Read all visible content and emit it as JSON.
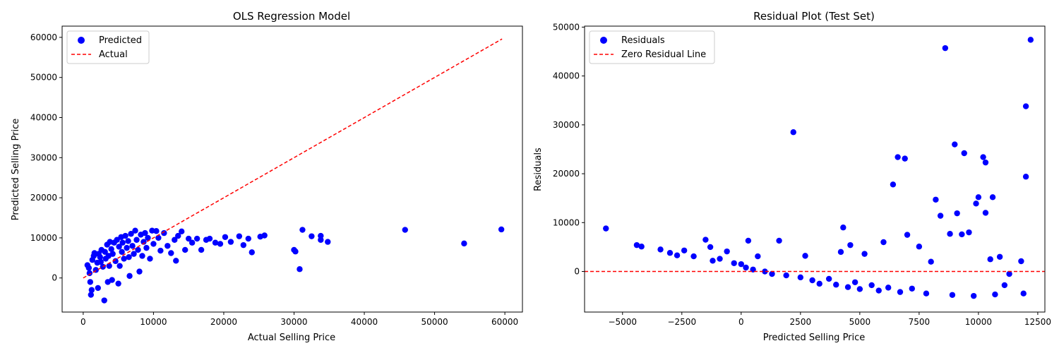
{
  "chart_data": [
    {
      "type": "scatter",
      "title": "OLS Regression Model",
      "xlabel": "Actual Selling Price",
      "ylabel": "Predicted Selling Price",
      "xlim": [
        -3000,
        62500
      ],
      "ylim": [
        -8500,
        62800
      ],
      "xticks": [
        0,
        10000,
        20000,
        30000,
        40000,
        50000,
        60000
      ],
      "yticks": [
        0,
        10000,
        20000,
        30000,
        40000,
        50000,
        60000
      ],
      "xtick_labels": [
        "0",
        "10000",
        "20000",
        "30000",
        "40000",
        "50000",
        "60000"
      ],
      "ytick_labels": [
        "0",
        "10000",
        "20000",
        "30000",
        "40000",
        "50000",
        "60000"
      ],
      "grid": false,
      "legend": "top-left",
      "series": [
        {
          "name": "Predicted",
          "kind": "scatter",
          "color": "#0000ff",
          "points": [
            [
              600,
              3200
            ],
            [
              800,
              2500
            ],
            [
              900,
              1200
            ],
            [
              1000,
              -1000
            ],
            [
              1100,
              -4200
            ],
            [
              1200,
              -3000
            ],
            [
              1300,
              4500
            ],
            [
              1500,
              5500
            ],
            [
              1600,
              6200
            ],
            [
              1800,
              2000
            ],
            [
              2000,
              3800
            ],
            [
              2100,
              -2500
            ],
            [
              2200,
              6000
            ],
            [
              2400,
              5200
            ],
            [
              2500,
              4000
            ],
            [
              2600,
              7000
            ],
            [
              2800,
              2800
            ],
            [
              3000,
              -5600
            ],
            [
              3100,
              6500
            ],
            [
              3200,
              4800
            ],
            [
              3400,
              8300
            ],
            [
              3500,
              -1000
            ],
            [
              3600,
              5500
            ],
            [
              3700,
              3000
            ],
            [
              3800,
              9000
            ],
            [
              4000,
              7200
            ],
            [
              4100,
              -500
            ],
            [
              4200,
              6000
            ],
            [
              4400,
              8800
            ],
            [
              4600,
              4200
            ],
            [
              4800,
              9500
            ],
            [
              5000,
              -1400
            ],
            [
              5100,
              7800
            ],
            [
              5200,
              3000
            ],
            [
              5400,
              10200
            ],
            [
              5500,
              6500
            ],
            [
              5600,
              8800
            ],
            [
              5800,
              4800
            ],
            [
              6000,
              10500
            ],
            [
              6200,
              7500
            ],
            [
              6400,
              9200
            ],
            [
              6500,
              5200
            ],
            [
              6600,
              500
            ],
            [
              6800,
              11000
            ],
            [
              7000,
              8000
            ],
            [
              7200,
              6000
            ],
            [
              7400,
              11800
            ],
            [
              7600,
              9500
            ],
            [
              7800,
              7000
            ],
            [
              8000,
              1600
            ],
            [
              8200,
              10800
            ],
            [
              8400,
              5500
            ],
            [
              8600,
              9000
            ],
            [
              8800,
              11200
            ],
            [
              9000,
              7500
            ],
            [
              9200,
              10000
            ],
            [
              9500,
              4800
            ],
            [
              9800,
              11800
            ],
            [
              10000,
              8500
            ],
            [
              10400,
              11700
            ],
            [
              10700,
              10000
            ],
            [
              11000,
              6800
            ],
            [
              11500,
              11200
            ],
            [
              12000,
              8000
            ],
            [
              12500,
              6200
            ],
            [
              13000,
              9500
            ],
            [
              13200,
              4300
            ],
            [
              13500,
              10500
            ],
            [
              14000,
              11600
            ],
            [
              14500,
              7000
            ],
            [
              15000,
              9800
            ],
            [
              15500,
              8800
            ],
            [
              16200,
              9800
            ],
            [
              16800,
              7000
            ],
            [
              17500,
              9500
            ],
            [
              18000,
              9800
            ],
            [
              18800,
              8800
            ],
            [
              19500,
              8500
            ],
            [
              20200,
              10200
            ],
            [
              21000,
              9000
            ],
            [
              22200,
              10400
            ],
            [
              22800,
              8200
            ],
            [
              23500,
              9800
            ],
            [
              24000,
              6400
            ],
            [
              25200,
              10300
            ],
            [
              25800,
              10600
            ],
            [
              30000,
              7000
            ],
            [
              30200,
              6600
            ],
            [
              30800,
              2200
            ],
            [
              31200,
              12000
            ],
            [
              32500,
              10400
            ],
            [
              33800,
              10500
            ],
            [
              33800,
              9500
            ],
            [
              34800,
              9000
            ],
            [
              45800,
              12000
            ],
            [
              54200,
              8600
            ],
            [
              59500,
              12100
            ]
          ]
        },
        {
          "name": "Actual",
          "kind": "line",
          "style": "dashed",
          "color": "#ff0000",
          "points": [
            [
              0,
              0
            ],
            [
              59600,
              59600
            ]
          ]
        }
      ]
    },
    {
      "type": "scatter",
      "title": "Residual Plot (Test Set)",
      "xlabel": "Predicted Selling Price",
      "ylabel": "Residuals",
      "xlim": [
        -6600,
        12800
      ],
      "ylim": [
        -8300,
        50200
      ],
      "xticks": [
        -5000,
        -2500,
        0,
        2500,
        5000,
        7500,
        10000,
        12500
      ],
      "yticks": [
        0,
        10000,
        20000,
        30000,
        40000,
        50000
      ],
      "xtick_labels": [
        "−5000",
        "−2500",
        "0",
        "2500",
        "5000",
        "7500",
        "10000",
        "12500"
      ],
      "ytick_labels": [
        "0",
        "10000",
        "20000",
        "30000",
        "40000",
        "50000"
      ],
      "grid": false,
      "legend": "top-left",
      "series": [
        {
          "name": "Residuals",
          "kind": "scatter",
          "color": "#0000ff",
          "points": [
            [
              -5700,
              8800
            ],
            [
              -4400,
              5400
            ],
            [
              -4200,
              5100
            ],
            [
              -3400,
              4500
            ],
            [
              -3000,
              3800
            ],
            [
              -2700,
              3300
            ],
            [
              -2400,
              4300
            ],
            [
              -2000,
              3100
            ],
            [
              -1500,
              6500
            ],
            [
              -1300,
              5000
            ],
            [
              -1200,
              2200
            ],
            [
              -900,
              2600
            ],
            [
              -600,
              4100
            ],
            [
              -300,
              1700
            ],
            [
              0,
              1500
            ],
            [
              200,
              800
            ],
            [
              300,
              6300
            ],
            [
              500,
              400
            ],
            [
              700,
              3100
            ],
            [
              1000,
              0
            ],
            [
              1300,
              -500
            ],
            [
              1600,
              6300
            ],
            [
              1900,
              -800
            ],
            [
              2200,
              28500
            ],
            [
              2500,
              -1200
            ],
            [
              2700,
              3200
            ],
            [
              3000,
              -1800
            ],
            [
              3300,
              -2500
            ],
            [
              3700,
              -1500
            ],
            [
              4000,
              -2700
            ],
            [
              4200,
              4000
            ],
            [
              4300,
              9000
            ],
            [
              4500,
              -3200
            ],
            [
              4600,
              5400
            ],
            [
              4800,
              -2200
            ],
            [
              5000,
              -3600
            ],
            [
              5200,
              3600
            ],
            [
              5500,
              -2800
            ],
            [
              5800,
              -3900
            ],
            [
              6000,
              6000
            ],
            [
              6200,
              -3300
            ],
            [
              6400,
              17800
            ],
            [
              6600,
              23400
            ],
            [
              6700,
              -4200
            ],
            [
              6900,
              23100
            ],
            [
              7000,
              7500
            ],
            [
              7200,
              -3500
            ],
            [
              7500,
              5100
            ],
            [
              7800,
              -4500
            ],
            [
              8000,
              2000
            ],
            [
              8200,
              14700
            ],
            [
              8400,
              11400
            ],
            [
              8600,
              45700
            ],
            [
              8800,
              7700
            ],
            [
              8900,
              -4800
            ],
            [
              9000,
              26000
            ],
            [
              9100,
              11900
            ],
            [
              9300,
              7600
            ],
            [
              9400,
              24200
            ],
            [
              9600,
              8000
            ],
            [
              9800,
              -5000
            ],
            [
              9900,
              13900
            ],
            [
              10000,
              15200
            ],
            [
              10200,
              23400
            ],
            [
              10300,
              22300
            ],
            [
              10300,
              12000
            ],
            [
              10500,
              2500
            ],
            [
              10600,
              15200
            ],
            [
              10700,
              -4700
            ],
            [
              10900,
              3000
            ],
            [
              11100,
              -2800
            ],
            [
              11300,
              -500
            ],
            [
              11800,
              2100
            ],
            [
              11900,
              -4500
            ],
            [
              12000,
              33800
            ],
            [
              12000,
              19400
            ],
            [
              12200,
              47400
            ]
          ]
        },
        {
          "name": "Zero Residual Line",
          "kind": "hline",
          "style": "dashed",
          "color": "#ff0000",
          "y": 0
        }
      ]
    }
  ]
}
